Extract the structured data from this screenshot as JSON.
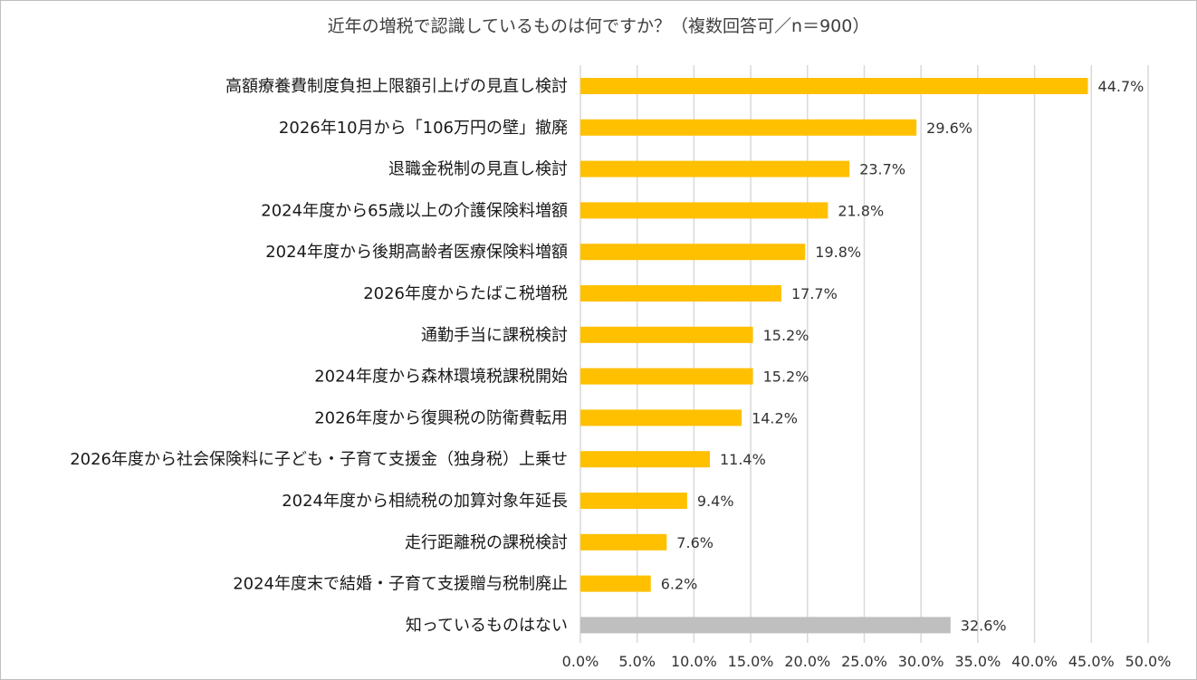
{
  "chart_data": {
    "type": "bar",
    "orientation": "horizontal",
    "title": "近年の増税で認識しているものは何ですか？（複数回答可／n＝900）",
    "xlabel": "",
    "ylabel": "",
    "xlim": [
      0,
      50
    ],
    "grid": true,
    "bar_color": "#ffc000",
    "highlight_color": "#bfbfbf",
    "categories": [
      "高額療養費制度負担上限額引上げの見直し検討",
      "2026年10月から「106万円の壁」撤廃",
      "退職金税制の見直し検討",
      "2024年度から65歳以上の介護保険料増額",
      "2024年度から後期高齢者医療保険料増額",
      "2026年度からたばこ税増税",
      "通勤手当に課税検討",
      "2024年度から森林環境税課税開始",
      "2026年度から復興税の防衛費転用",
      "2026年度から社会保険料に子ども・子育て支援金（独身税）上乗せ",
      "2024年度から相続税の加算対象年延長",
      "走行距離税の課税検討",
      "2024年度末で結婚・子育て支援贈与税制廃止",
      "知っているものはない"
    ],
    "values": [
      44.7,
      29.6,
      23.7,
      21.8,
      19.8,
      17.7,
      15.2,
      15.2,
      14.2,
      11.4,
      9.4,
      7.6,
      6.2,
      32.6
    ],
    "value_labels": [
      "44.7%",
      "29.6%",
      "23.7%",
      "21.8%",
      "19.8%",
      "17.7%",
      "15.2%",
      "15.2%",
      "14.2%",
      "11.4%",
      "9.4%",
      "7.6%",
      "6.2%",
      "32.6%"
    ],
    "highlight_index": 13,
    "ticks": [
      0,
      5,
      10,
      15,
      20,
      25,
      30,
      35,
      40,
      45,
      50
    ],
    "tick_labels": [
      "0.0%",
      "5.0%",
      "10.0%",
      "15.0%",
      "20.0%",
      "25.0%",
      "30.0%",
      "35.0%",
      "40.0%",
      "45.0%",
      "50.0%"
    ]
  }
}
